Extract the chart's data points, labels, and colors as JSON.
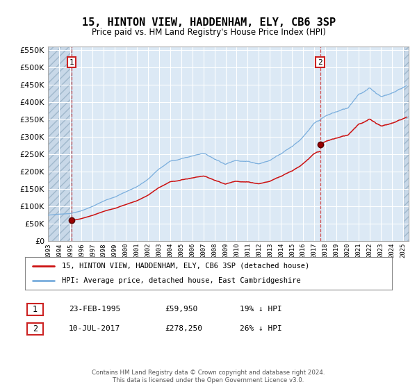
{
  "title": "15, HINTON VIEW, HADDENHAM, ELY, CB6 3SP",
  "subtitle": "Price paid vs. HM Land Registry's House Price Index (HPI)",
  "background_color": "#dce9f5",
  "sale1_date_num": 1995.14,
  "sale1_price": 59950,
  "sale2_date_num": 2017.52,
  "sale2_price": 278250,
  "ylim_max": 560000,
  "ylim_min": 0,
  "xlim_min": 1993.0,
  "xlim_max": 2025.5,
  "footer": "Contains HM Land Registry data © Crown copyright and database right 2024.\nThis data is licensed under the Open Government Licence v3.0.",
  "legend1": "15, HINTON VIEW, HADDENHAM, ELY, CB6 3SP (detached house)",
  "legend2": "HPI: Average price, detached house, East Cambridgeshire",
  "table1": [
    "23-FEB-1995",
    "£59,950",
    "19% ↓ HPI"
  ],
  "table2": [
    "10-JUL-2017",
    "£278,250",
    "26% ↓ HPI"
  ],
  "hpi_anchor_years": [
    1993.0,
    1994.0,
    1995.0,
    1996.0,
    1997.0,
    1998.0,
    1999.0,
    2000.0,
    2001.0,
    2002.0,
    2003.0,
    2004.0,
    2005.0,
    2006.0,
    2007.0,
    2008.0,
    2009.0,
    2010.0,
    2011.0,
    2012.0,
    2013.0,
    2014.0,
    2015.0,
    2016.0,
    2017.0,
    2018.0,
    2019.0,
    2020.0,
    2021.0,
    2022.0,
    2023.0,
    2024.0,
    2025.3
  ],
  "hpi_anchor_vals": [
    75000,
    78000,
    80000,
    88000,
    100000,
    115000,
    128000,
    143000,
    158000,
    180000,
    210000,
    232000,
    240000,
    248000,
    258000,
    242000,
    228000,
    240000,
    238000,
    232000,
    242000,
    265000,
    288000,
    318000,
    355000,
    375000,
    388000,
    398000,
    445000,
    462000,
    440000,
    450000,
    475000
  ]
}
